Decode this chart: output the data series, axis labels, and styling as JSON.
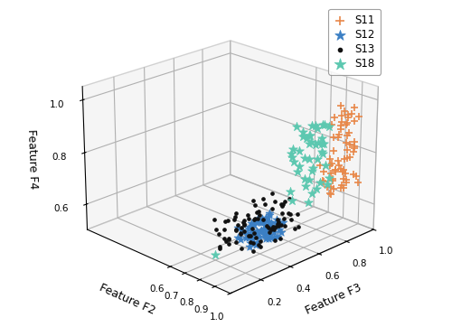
{
  "xlabel": "Feature F3",
  "ylabel": "Feature F2",
  "zlabel": "Feature F4",
  "S11_color": "#E8884A",
  "S12_color": "#3B7FC4",
  "S13_color": "#111111",
  "S18_color": "#5CC8B0",
  "elev": 22,
  "azim": 45,
  "pane_color": [
    0.93,
    0.93,
    0.93,
    0.6
  ],
  "pane_edge_color": "#aaaaaa"
}
